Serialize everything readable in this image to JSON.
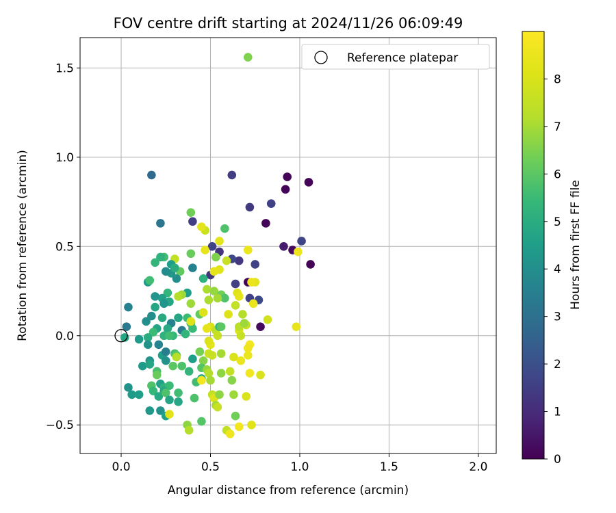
{
  "chart_data": {
    "type": "scatter",
    "title": "FOV centre drift starting at 2024/11/26 06:09:49",
    "xlabel": "Angular distance from reference (arcmin)",
    "ylabel": "Rotation from reference (arcmin)",
    "xlim": [
      -0.23,
      2.1
    ],
    "ylim": [
      -0.66,
      1.67
    ],
    "xticks": [
      0.0,
      0.5,
      1.0,
      1.5,
      2.0
    ],
    "xtick_labels": [
      "0.0",
      "0.5",
      "1.0",
      "1.5",
      "2.0"
    ],
    "yticks": [
      -0.5,
      0.0,
      0.5,
      1.0,
      1.5
    ],
    "ytick_labels": [
      "−0.5",
      "0.0",
      "0.5",
      "1.0",
      "1.5"
    ],
    "grid": true,
    "legend": {
      "position": "top-right",
      "label": "Reference platepar"
    },
    "reference_point": {
      "x": 0.0,
      "y": 0.0
    },
    "colorbar": {
      "label": "Hours from first FF file",
      "min": 0,
      "max": 9,
      "ticks": [
        0,
        1,
        2,
        3,
        4,
        5,
        6,
        7,
        8
      ],
      "tick_labels": [
        "0",
        "1",
        "2",
        "3",
        "4",
        "5",
        "6",
        "7",
        "8"
      ],
      "colormap": "viridis"
    },
    "points": [
      [
        0.93,
        0.89,
        0.1
      ],
      [
        1.05,
        0.86,
        0.1
      ],
      [
        0.92,
        0.82,
        0.1
      ],
      [
        0.81,
        0.63,
        0.1
      ],
      [
        1.06,
        0.4,
        0.1
      ],
      [
        0.96,
        0.48,
        0.2
      ],
      [
        0.71,
        0.3,
        0.1
      ],
      [
        0.78,
        0.05,
        0.2
      ],
      [
        0.91,
        0.5,
        0.6
      ],
      [
        0.62,
        0.9,
        1.5
      ],
      [
        0.72,
        0.72,
        1.4
      ],
      [
        0.84,
        0.74,
        1.6
      ],
      [
        1.01,
        0.53,
        1.7
      ],
      [
        0.66,
        0.42,
        1.3
      ],
      [
        0.75,
        0.4,
        1.6
      ],
      [
        0.62,
        0.43,
        1.8
      ],
      [
        0.55,
        0.47,
        1.2
      ],
      [
        0.51,
        0.5,
        1.6
      ],
      [
        0.64,
        0.29,
        1.5
      ],
      [
        0.72,
        0.21,
        1.6
      ],
      [
        0.77,
        0.2,
        1.8
      ],
      [
        0.5,
        0.34,
        1.3
      ],
      [
        0.4,
        0.64,
        1.5
      ],
      [
        0.17,
        0.9,
        2.8
      ],
      [
        0.22,
        0.63,
        3.2
      ],
      [
        0.47,
        0.59,
        7.7
      ],
      [
        0.45,
        0.61,
        8.3
      ],
      [
        0.39,
        0.69,
        6.3
      ],
      [
        0.58,
        0.6,
        5.8
      ],
      [
        0.55,
        0.53,
        8.3
      ],
      [
        0.53,
        0.44,
        6.5
      ],
      [
        0.71,
        0.48,
        8.5
      ],
      [
        0.99,
        0.47,
        8.6
      ],
      [
        0.98,
        0.05,
        8.4
      ],
      [
        0.71,
        1.56,
        6.5
      ],
      [
        0.75,
        0.3,
        8.3
      ],
      [
        0.74,
        0.18,
        8.5
      ],
      [
        0.55,
        0.37,
        8.2
      ],
      [
        0.52,
        0.36,
        8.4
      ],
      [
        0.47,
        0.48,
        8.4
      ],
      [
        0.59,
        0.42,
        7.6
      ],
      [
        0.39,
        0.46,
        6.2
      ],
      [
        0.3,
        0.43,
        7.5
      ],
      [
        0.24,
        0.44,
        5.6
      ],
      [
        0.22,
        0.44,
        5.2
      ],
      [
        0.33,
        0.36,
        6.1
      ],
      [
        0.19,
        0.41,
        5.3
      ],
      [
        0.28,
        0.4,
        4.5
      ],
      [
        0.31,
        0.32,
        4.0
      ],
      [
        0.4,
        0.38,
        3.6
      ],
      [
        0.28,
        0.35,
        4.3
      ],
      [
        0.3,
        0.38,
        5.0
      ],
      [
        0.26,
        0.24,
        5.3
      ],
      [
        0.25,
        0.36,
        3.9
      ],
      [
        0.15,
        0.3,
        4.4
      ],
      [
        0.16,
        0.31,
        5.6
      ],
      [
        0.46,
        0.32,
        5.2
      ],
      [
        0.48,
        0.26,
        7.1
      ],
      [
        0.52,
        0.25,
        6.8
      ],
      [
        0.56,
        0.23,
        6.3
      ],
      [
        0.58,
        0.21,
        5.8
      ],
      [
        0.54,
        0.21,
        7.0
      ],
      [
        0.49,
        0.2,
        7.1
      ],
      [
        0.37,
        0.24,
        4.5
      ],
      [
        0.34,
        0.23,
        6.9
      ],
      [
        0.32,
        0.22,
        7.2
      ],
      [
        0.39,
        0.18,
        6.9
      ],
      [
        0.27,
        0.19,
        4.8
      ],
      [
        0.23,
        0.21,
        4.6
      ],
      [
        0.19,
        0.22,
        4.2
      ],
      [
        0.24,
        0.18,
        4.2
      ],
      [
        0.19,
        0.16,
        4.8
      ],
      [
        0.04,
        0.16,
        3.6
      ],
      [
        0.17,
        0.11,
        4.0
      ],
      [
        0.14,
        0.08,
        4.0
      ],
      [
        0.23,
        0.1,
        4.9
      ],
      [
        0.28,
        0.07,
        3.6
      ],
      [
        0.32,
        0.1,
        4.8
      ],
      [
        0.37,
        0.1,
        5.5
      ],
      [
        0.39,
        0.07,
        5.5
      ],
      [
        0.34,
        0.03,
        3.4
      ],
      [
        0.26,
        0.04,
        4.9
      ],
      [
        0.29,
        0.0,
        5.4
      ],
      [
        0.24,
        0.0,
        5.2
      ],
      [
        0.27,
        0.0,
        5.6
      ],
      [
        0.36,
        0.01,
        5.3
      ],
      [
        0.4,
        0.04,
        5.5
      ],
      [
        0.44,
        0.12,
        6.1
      ],
      [
        0.46,
        0.13,
        8.1
      ],
      [
        0.39,
        0.08,
        8.1
      ],
      [
        0.5,
        0.05,
        8.0
      ],
      [
        0.48,
        0.04,
        8.4
      ],
      [
        0.53,
        0.03,
        7.4
      ],
      [
        0.55,
        0.05,
        5.4
      ],
      [
        0.56,
        0.05,
        6.0
      ],
      [
        0.54,
        0.0,
        7.6
      ],
      [
        0.6,
        0.12,
        8.1
      ],
      [
        0.64,
        0.17,
        7.5
      ],
      [
        0.65,
        0.24,
        8.2
      ],
      [
        0.66,
        0.22,
        8.3
      ],
      [
        0.68,
        0.12,
        7.2
      ],
      [
        0.7,
        0.06,
        7.7
      ],
      [
        0.66,
        0.03,
        8.1
      ],
      [
        0.67,
        0.0,
        7.6
      ],
      [
        0.66,
        0.05,
        7.3
      ],
      [
        0.69,
        0.07,
        6.9
      ],
      [
        0.82,
        0.09,
        7.8
      ],
      [
        0.73,
        0.3,
        8.5
      ],
      [
        0.2,
        0.04,
        4.7
      ],
      [
        0.18,
        0.02,
        5.5
      ],
      [
        0.15,
        -0.01,
        5.0
      ],
      [
        0.1,
        -0.02,
        4.4
      ],
      [
        0.03,
        0.05,
        3.3
      ],
      [
        0.02,
        -0.01,
        4.8
      ],
      [
        0.15,
        -0.05,
        4.1
      ],
      [
        0.21,
        -0.05,
        3.6
      ],
      [
        0.23,
        -0.11,
        4.5
      ],
      [
        0.25,
        -0.14,
        4.1
      ],
      [
        0.25,
        -0.09,
        3.5
      ],
      [
        0.3,
        -0.1,
        5.7
      ],
      [
        0.31,
        -0.11,
        6.0
      ],
      [
        0.31,
        -0.12,
        7.3
      ],
      [
        0.4,
        -0.13,
        4.5
      ],
      [
        0.44,
        -0.09,
        6.4
      ],
      [
        0.46,
        -0.14,
        6.6
      ],
      [
        0.49,
        -0.1,
        7.7
      ],
      [
        0.51,
        -0.11,
        7.6
      ],
      [
        0.5,
        -0.05,
        8.3
      ],
      [
        0.49,
        -0.03,
        8.1
      ],
      [
        0.56,
        -0.1,
        7.0
      ],
      [
        0.63,
        -0.12,
        8.0
      ],
      [
        0.67,
        -0.14,
        8.5
      ],
      [
        0.71,
        -0.11,
        8.5
      ],
      [
        0.72,
        -0.05,
        8.7
      ],
      [
        0.71,
        -0.07,
        8.6
      ],
      [
        0.16,
        -0.14,
        4.2
      ],
      [
        0.12,
        -0.17,
        4.4
      ],
      [
        0.16,
        -0.16,
        4.8
      ],
      [
        0.2,
        -0.2,
        5.7
      ],
      [
        0.2,
        -0.22,
        6.2
      ],
      [
        0.29,
        -0.17,
        6.0
      ],
      [
        0.34,
        -0.17,
        5.8
      ],
      [
        0.38,
        -0.2,
        5.3
      ],
      [
        0.45,
        -0.18,
        5.9
      ],
      [
        0.48,
        -0.19,
        6.8
      ],
      [
        0.49,
        -0.21,
        7.2
      ],
      [
        0.5,
        -0.25,
        7.0
      ],
      [
        0.45,
        -0.24,
        4.9
      ],
      [
        0.42,
        -0.26,
        5.6
      ],
      [
        0.45,
        -0.25,
        8.7
      ],
      [
        0.56,
        -0.21,
        6.7
      ],
      [
        0.61,
        -0.2,
        7.5
      ],
      [
        0.62,
        -0.25,
        6.6
      ],
      [
        0.72,
        -0.21,
        8.7
      ],
      [
        0.78,
        -0.22,
        8.0
      ],
      [
        0.22,
        -0.27,
        4.6
      ],
      [
        0.24,
        -0.29,
        5.2
      ],
      [
        0.27,
        -0.28,
        5.5
      ],
      [
        0.24,
        -0.31,
        4.8
      ],
      [
        0.17,
        -0.28,
        5.8
      ],
      [
        0.18,
        -0.31,
        5.4
      ],
      [
        0.04,
        -0.29,
        4.1
      ],
      [
        0.06,
        -0.33,
        4.4
      ],
      [
        0.1,
        -0.33,
        4.5
      ],
      [
        0.21,
        -0.34,
        4.9
      ],
      [
        0.25,
        -0.32,
        5.8
      ],
      [
        0.27,
        -0.36,
        4.7
      ],
      [
        0.32,
        -0.32,
        5.6
      ],
      [
        0.32,
        -0.37,
        4.8
      ],
      [
        0.41,
        -0.35,
        5.8
      ],
      [
        0.51,
        -0.33,
        7.5
      ],
      [
        0.52,
        -0.35,
        8.1
      ],
      [
        0.55,
        -0.33,
        6.7
      ],
      [
        0.53,
        -0.39,
        7.0
      ],
      [
        0.54,
        -0.4,
        7.6
      ],
      [
        0.63,
        -0.33,
        6.9
      ],
      [
        0.7,
        -0.34,
        8.0
      ],
      [
        0.16,
        -0.42,
        4.3
      ],
      [
        0.22,
        -0.42,
        4.1
      ],
      [
        0.25,
        -0.45,
        4.6
      ],
      [
        0.27,
        -0.44,
        8.2
      ],
      [
        0.45,
        -0.48,
        5.9
      ],
      [
        0.37,
        -0.5,
        6.7
      ],
      [
        0.38,
        -0.53,
        7.2
      ],
      [
        0.64,
        -0.45,
        6.3
      ],
      [
        0.59,
        -0.53,
        7.5
      ],
      [
        0.61,
        -0.55,
        8.6
      ],
      [
        0.66,
        -0.51,
        8.7
      ],
      [
        0.73,
        -0.5,
        8.2
      ]
    ]
  }
}
